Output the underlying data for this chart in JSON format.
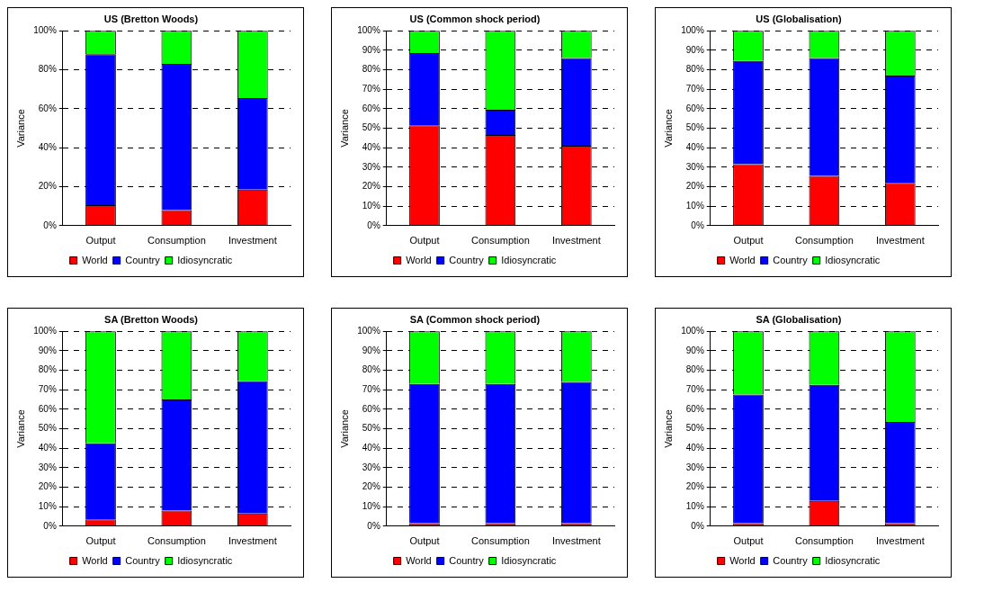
{
  "chart_data": [
    {
      "type": "bar",
      "stacked": true,
      "title": "US (Bretton Woods)",
      "ylabel": "Variance",
      "categories": [
        "Output",
        "Consumption",
        "Investment"
      ],
      "series": [
        {
          "name": "World",
          "color": "#ff0000",
          "values": [
            10.5,
            8,
            18.5
          ]
        },
        {
          "name": "Country",
          "color": "#0000ff",
          "values": [
            77.5,
            75,
            47
          ]
        },
        {
          "name": "Idiosyncratic",
          "color": "#00ff00",
          "values": [
            12,
            17,
            34.5
          ]
        }
      ],
      "ylim": [
        0,
        100
      ],
      "yticks": [
        {
          "value": 0,
          "label": "0%"
        },
        {
          "value": 20,
          "label": "20%"
        },
        {
          "value": 40,
          "label": "40%"
        },
        {
          "value": 60,
          "label": "60%"
        },
        {
          "value": 80,
          "label": "80%"
        },
        {
          "value": 100,
          "label": "100%"
        }
      ],
      "grid": "y",
      "legend": "bottom"
    },
    {
      "type": "bar",
      "stacked": true,
      "title": "US (Common shock period)",
      "ylabel": "Variance",
      "categories": [
        "Output",
        "Consumption",
        "Investment"
      ],
      "series": [
        {
          "name": "World",
          "color": "#ff0000",
          "values": [
            51.5,
            46.5,
            41
          ]
        },
        {
          "name": "Country",
          "color": "#0000ff",
          "values": [
            37,
            13,
            45
          ]
        },
        {
          "name": "Idiosyncratic",
          "color": "#00ff00",
          "values": [
            11.5,
            40.5,
            14
          ]
        }
      ],
      "ylim": [
        0,
        100
      ],
      "yticks": [
        {
          "value": 0,
          "label": "0%"
        },
        {
          "value": 10,
          "label": "10%"
        },
        {
          "value": 20,
          "label": "20%"
        },
        {
          "value": 30,
          "label": "30%"
        },
        {
          "value": 40,
          "label": "40%"
        },
        {
          "value": 50,
          "label": "50%"
        },
        {
          "value": 60,
          "label": "60%"
        },
        {
          "value": 70,
          "label": "70%"
        },
        {
          "value": 80,
          "label": "80%"
        },
        {
          "value": 90,
          "label": "90%"
        },
        {
          "value": 100,
          "label": "100%"
        }
      ],
      "grid": "y",
      "legend": "bottom"
    },
    {
      "type": "bar",
      "stacked": true,
      "title": "US (Globalisation)",
      "ylabel": "Variance",
      "categories": [
        "Output",
        "Consumption",
        "Investment"
      ],
      "series": [
        {
          "name": "World",
          "color": "#ff0000",
          "values": [
            31.5,
            25.5,
            22
          ]
        },
        {
          "name": "Country",
          "color": "#0000ff",
          "values": [
            53,
            60.5,
            55
          ]
        },
        {
          "name": "Idiosyncratic",
          "color": "#00ff00",
          "values": [
            15.5,
            14,
            23
          ]
        }
      ],
      "ylim": [
        0,
        100
      ],
      "yticks": [
        {
          "value": 0,
          "label": "0%"
        },
        {
          "value": 10,
          "label": "10%"
        },
        {
          "value": 20,
          "label": "20%"
        },
        {
          "value": 30,
          "label": "30%"
        },
        {
          "value": 40,
          "label": "40%"
        },
        {
          "value": 50,
          "label": "50%"
        },
        {
          "value": 60,
          "label": "60%"
        },
        {
          "value": 70,
          "label": "70%"
        },
        {
          "value": 80,
          "label": "80%"
        },
        {
          "value": 90,
          "label": "90%"
        },
        {
          "value": 100,
          "label": "100%"
        }
      ],
      "grid": "y",
      "legend": "bottom"
    },
    {
      "type": "bar",
      "stacked": true,
      "title": "SA (Bretton Woods)",
      "ylabel": "Variance",
      "categories": [
        "Output",
        "Consumption",
        "Investment"
      ],
      "series": [
        {
          "name": "World",
          "color": "#ff0000",
          "values": [
            3.5,
            8,
            6.5
          ]
        },
        {
          "name": "Country",
          "color": "#0000ff",
          "values": [
            39,
            57,
            68
          ]
        },
        {
          "name": "Idiosyncratic",
          "color": "#00ff00",
          "values": [
            57.5,
            35,
            25.5
          ]
        }
      ],
      "ylim": [
        0,
        100
      ],
      "yticks": [
        {
          "value": 0,
          "label": "0%"
        },
        {
          "value": 10,
          "label": "10%"
        },
        {
          "value": 20,
          "label": "20%"
        },
        {
          "value": 30,
          "label": "30%"
        },
        {
          "value": 40,
          "label": "40%"
        },
        {
          "value": 50,
          "label": "50%"
        },
        {
          "value": 60,
          "label": "60%"
        },
        {
          "value": 70,
          "label": "70%"
        },
        {
          "value": 80,
          "label": "80%"
        },
        {
          "value": 90,
          "label": "90%"
        },
        {
          "value": 100,
          "label": "100%"
        }
      ],
      "grid": "y",
      "legend": "bottom"
    },
    {
      "type": "bar",
      "stacked": true,
      "title": "SA (Common shock period)",
      "ylabel": "Variance",
      "categories": [
        "Output",
        "Consumption",
        "Investment"
      ],
      "series": [
        {
          "name": "World",
          "color": "#ff0000",
          "values": [
            1.5,
            1.5,
            1.5
          ]
        },
        {
          "name": "Country",
          "color": "#0000ff",
          "values": [
            71.5,
            71.5,
            72.5
          ]
        },
        {
          "name": "Idiosyncratic",
          "color": "#00ff00",
          "values": [
            27,
            27,
            26
          ]
        }
      ],
      "ylim": [
        0,
        100
      ],
      "yticks": [
        {
          "value": 0,
          "label": "0%"
        },
        {
          "value": 10,
          "label": "10%"
        },
        {
          "value": 20,
          "label": "20%"
        },
        {
          "value": 30,
          "label": "30%"
        },
        {
          "value": 40,
          "label": "40%"
        },
        {
          "value": 50,
          "label": "50%"
        },
        {
          "value": 60,
          "label": "60%"
        },
        {
          "value": 70,
          "label": "70%"
        },
        {
          "value": 80,
          "label": "80%"
        },
        {
          "value": 90,
          "label": "90%"
        },
        {
          "value": 100,
          "label": "100%"
        }
      ],
      "grid": "y",
      "legend": "bottom"
    },
    {
      "type": "bar",
      "stacked": true,
      "title": "SA (Globalisation)",
      "ylabel": "Variance",
      "categories": [
        "Output",
        "Consumption",
        "Investment"
      ],
      "series": [
        {
          "name": "World",
          "color": "#ff0000",
          "values": [
            1.5,
            13,
            1.5
          ]
        },
        {
          "name": "Country",
          "color": "#0000ff",
          "values": [
            66,
            59.5,
            52
          ]
        },
        {
          "name": "Idiosyncratic",
          "color": "#00ff00",
          "values": [
            32.5,
            27.5,
            46.5
          ]
        }
      ],
      "ylim": [
        0,
        100
      ],
      "yticks": [
        {
          "value": 0,
          "label": "0%"
        },
        {
          "value": 10,
          "label": "10%"
        },
        {
          "value": 20,
          "label": "20%"
        },
        {
          "value": 30,
          "label": "30%"
        },
        {
          "value": 40,
          "label": "40%"
        },
        {
          "value": 50,
          "label": "50%"
        },
        {
          "value": 60,
          "label": "60%"
        },
        {
          "value": 70,
          "label": "70%"
        },
        {
          "value": 80,
          "label": "80%"
        },
        {
          "value": 90,
          "label": "90%"
        },
        {
          "value": 100,
          "label": "100%"
        }
      ],
      "grid": "y",
      "legend": "bottom"
    }
  ]
}
